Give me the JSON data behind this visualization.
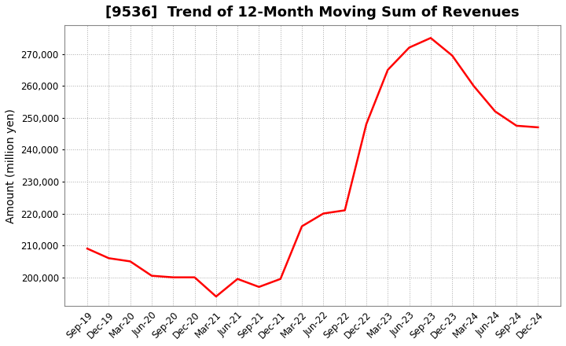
{
  "title": "[9536]  Trend of 12-Month Moving Sum of Revenues",
  "ylabel": "Amount (million yen)",
  "line_color": "#FF0000",
  "line_width": 1.8,
  "background_color": "#FFFFFF",
  "grid_color": "#AAAAAA",
  "x_labels": [
    "Sep-19",
    "Dec-19",
    "Mar-20",
    "Jun-20",
    "Sep-20",
    "Dec-20",
    "Mar-21",
    "Jun-21",
    "Sep-21",
    "Dec-21",
    "Mar-22",
    "Jun-22",
    "Sep-22",
    "Dec-22",
    "Mar-23",
    "Jun-23",
    "Sep-23",
    "Dec-23",
    "Mar-24",
    "Jun-24",
    "Sep-24",
    "Dec-24"
  ],
  "y_values": [
    209000,
    206000,
    205000,
    200500,
    200000,
    200000,
    194000,
    199500,
    197000,
    199500,
    216000,
    220000,
    221000,
    248000,
    265000,
    272000,
    275000,
    269500,
    260000,
    252000,
    247500,
    247000
  ],
  "yticks": [
    200000,
    210000,
    220000,
    230000,
    240000,
    250000,
    260000,
    270000
  ],
  "ylim": [
    191000,
    279000
  ],
  "title_fontsize": 13,
  "tick_fontsize": 8.5,
  "ylabel_fontsize": 10
}
